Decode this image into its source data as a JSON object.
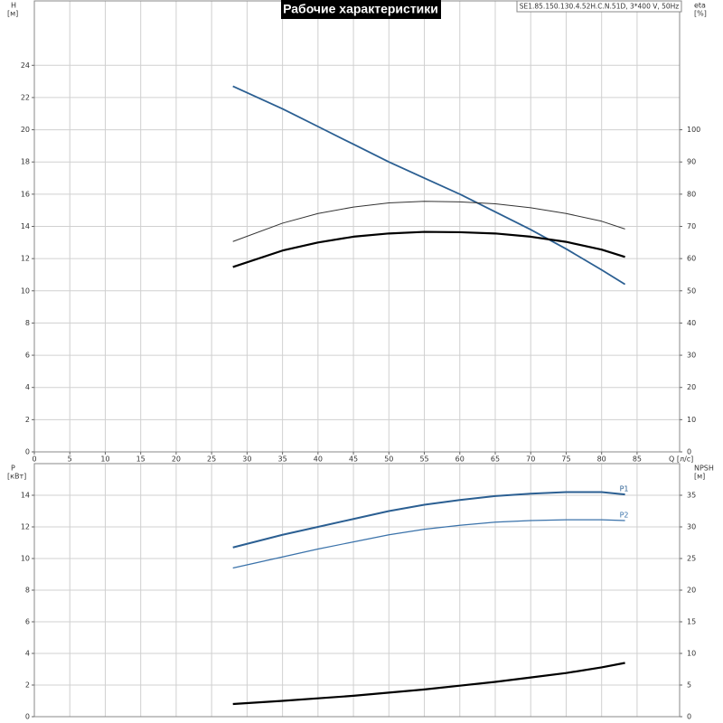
{
  "chart_data": [
    {
      "type": "line",
      "title": "Рабочие характеристики",
      "subtitle": "SE1.85.150.130.4.52H.C.N.51D, 3*400 V, 50Hz",
      "y_label": "H",
      "y_unit": "[м]",
      "y2_label": "eta",
      "y2_unit": "[%]",
      "x_label": "Q [л/с]",
      "x": [
        28,
        35,
        40,
        45,
        50,
        55,
        60,
        65,
        70,
        75,
        80,
        83.3
      ],
      "xlim": [
        0,
        91
      ],
      "xticks": [
        0,
        5,
        10,
        15,
        20,
        25,
        30,
        35,
        40,
        45,
        50,
        55,
        60,
        65,
        70,
        75,
        80,
        85
      ],
      "ylim": [
        0,
        28
      ],
      "yticks": [
        0,
        2,
        4,
        6,
        8,
        10,
        12,
        14,
        16,
        18,
        20,
        22,
        24
      ],
      "y2lim": [
        0,
        140
      ],
      "y2ticks": [
        0,
        10,
        20,
        30,
        40,
        50,
        60,
        70,
        80,
        90,
        100
      ],
      "grid": true,
      "series": [
        {
          "color": "#2b5f92",
          "line_width": 1.8,
          "values": [
            22.7,
            21.3,
            20.2,
            19.1,
            18.0,
            17.0,
            16.0,
            14.9,
            13.8,
            12.6,
            11.3,
            10.4
          ]
        },
        {
          "color": "#333333",
          "line_width": 1,
          "axis": "y2",
          "values": [
            65.3,
            71.0,
            74.0,
            76.0,
            77.3,
            77.8,
            77.6,
            77.0,
            75.8,
            74.0,
            71.6,
            69.2
          ]
        },
        {
          "color": "#000000",
          "line_width": 2.2,
          "axis": "y2",
          "values": [
            57.4,
            62.5,
            65.0,
            66.8,
            67.8,
            68.3,
            68.2,
            67.8,
            66.8,
            65.2,
            62.8,
            60.5
          ]
        }
      ]
    },
    {
      "type": "line",
      "y_label": "P",
      "y_unit": "[кВт]",
      "y2_label": "NPSH",
      "y2_unit": "[м]",
      "x": [
        28,
        35,
        40,
        45,
        50,
        55,
        60,
        65,
        70,
        75,
        80,
        83.3
      ],
      "xlim": [
        0,
        91
      ],
      "ylim": [
        0,
        16
      ],
      "yticks": [
        0,
        2,
        4,
        6,
        8,
        10,
        12,
        14
      ],
      "y2lim": [
        0,
        40
      ],
      "y2ticks": [
        0,
        5,
        10,
        15,
        20,
        25,
        30,
        35
      ],
      "grid": true,
      "series": [
        {
          "name": "P1",
          "color": "#2b5f92",
          "line_width": 2,
          "values": [
            10.7,
            11.5,
            12.0,
            12.5,
            13.0,
            13.4,
            13.7,
            13.95,
            14.1,
            14.2,
            14.2,
            14.05
          ]
        },
        {
          "name": "P2",
          "color": "#3a72aa",
          "line_width": 1.2,
          "values": [
            9.4,
            10.1,
            10.6,
            11.05,
            11.5,
            11.85,
            12.1,
            12.3,
            12.4,
            12.45,
            12.45,
            12.4
          ]
        },
        {
          "color": "#000000",
          "line_width": 2.2,
          "axis": "y2",
          "values": [
            2.0,
            2.5,
            2.9,
            3.3,
            3.8,
            4.3,
            4.9,
            5.5,
            6.2,
            6.9,
            7.8,
            8.5
          ]
        }
      ]
    }
  ]
}
